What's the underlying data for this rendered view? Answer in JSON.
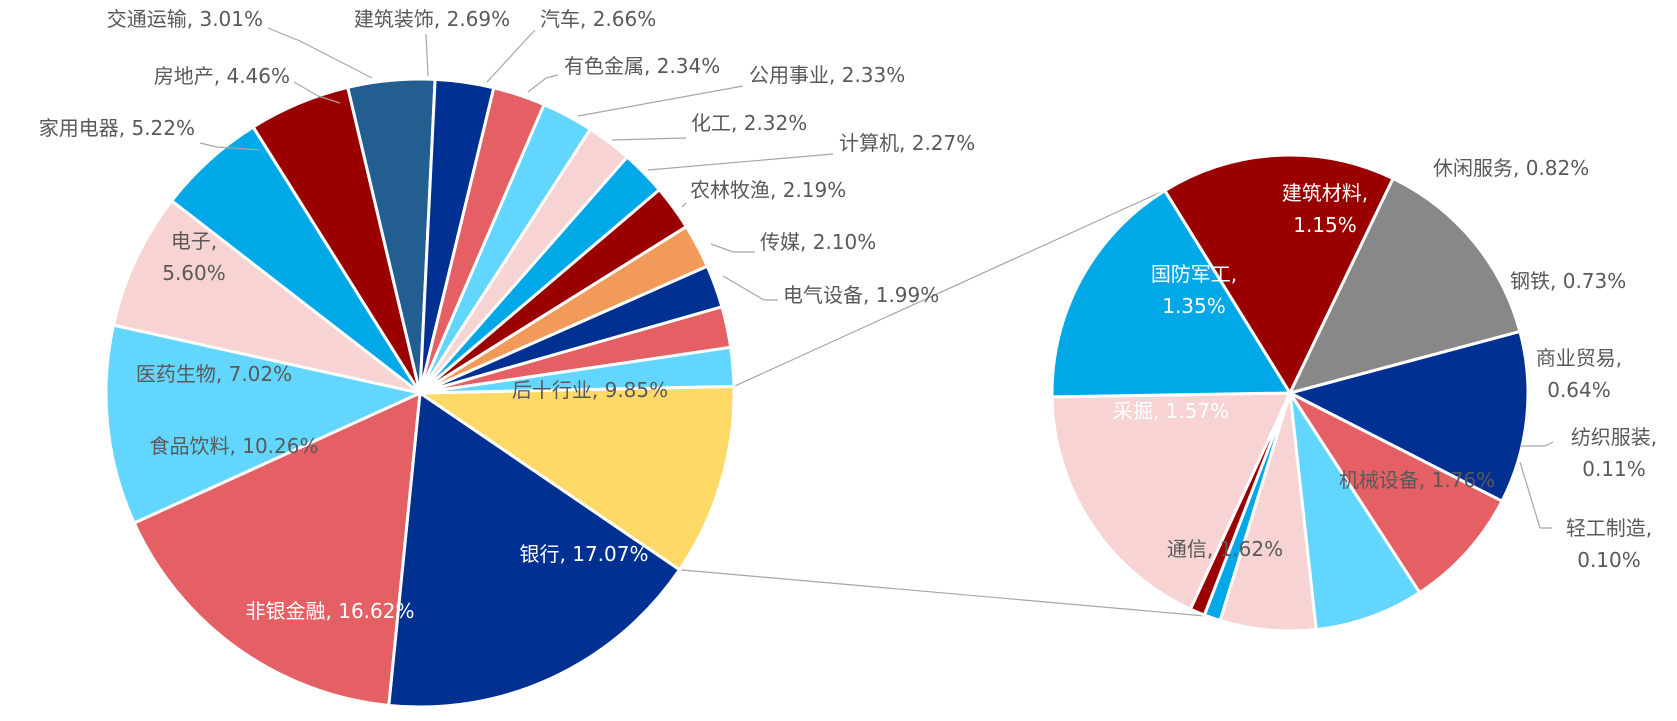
{
  "chart_data": {
    "type": "pie",
    "subtype": "pie-of-pie",
    "legend": "none",
    "main_pie": {
      "slices": [
        {
          "label": "后十行业",
          "value": 9.85,
          "text": "后十行业, 9.85%",
          "color": "#FFD966"
        },
        {
          "label": "银行",
          "value": 17.07,
          "text": "银行, 17.07%",
          "color": "#003192"
        },
        {
          "label": "非银金融",
          "value": 16.62,
          "text": "非银金融, 16.62%",
          "color": "#E46064"
        },
        {
          "label": "食品饮料",
          "value": 10.26,
          "text": "食品饮料, 10.26%",
          "color": "#63D6FF"
        },
        {
          "label": "医药生物",
          "value": 7.02,
          "text": "医药生物, 7.02%",
          "color": "#F8D3D3"
        },
        {
          "label": "电子",
          "value": 5.6,
          "text": "电子, 5.60%",
          "color": "#00A8E8"
        },
        {
          "label": "家用电器",
          "value": 5.22,
          "text": "家用电器, 5.22%",
          "color": "#9B0000"
        },
        {
          "label": "房地产",
          "value": 4.46,
          "text": "房地产, 4.46%",
          "color": "#225E8F"
        },
        {
          "label": "交通运输",
          "value": 3.01,
          "text": "交通运输, 3.01%",
          "color": "#003192"
        },
        {
          "label": "建筑装饰",
          "value": 2.69,
          "text": "建筑装饰, 2.69%",
          "color": "#E46064"
        },
        {
          "label": "汽车",
          "value": 2.66,
          "text": "汽车, 2.66%",
          "color": "#63D6FF"
        },
        {
          "label": "有色金属",
          "value": 2.34,
          "text": "有色金属, 2.34%",
          "color": "#F8D3D3"
        },
        {
          "label": "公用事业",
          "value": 2.33,
          "text": "公用事业, 2.33%",
          "color": "#00A8E8"
        },
        {
          "label": "化工",
          "value": 2.32,
          "text": "化工, 2.32%",
          "color": "#9B0000"
        },
        {
          "label": "计算机",
          "value": 2.27,
          "text": "计算机, 2.27%",
          "color": "#F29A5A"
        },
        {
          "label": "农林牧渔",
          "value": 2.19,
          "text": "农林牧渔, 2.19%",
          "color": "#003192"
        },
        {
          "label": "传媒",
          "value": 2.1,
          "text": "传媒, 2.10%",
          "color": "#E46064"
        },
        {
          "label": "电气设备",
          "value": 1.99,
          "text": "电气设备, 1.99%",
          "color": "#63D6FF"
        }
      ]
    },
    "secondary_pie": {
      "slices": [
        {
          "label": "建筑材料",
          "value": 1.15,
          "text": "建筑材料, 1.15%",
          "color": "#003192"
        },
        {
          "label": "休闲服务",
          "value": 0.82,
          "text": "休闲服务, 0.82%",
          "color": "#E46064"
        },
        {
          "label": "钢铁",
          "value": 0.73,
          "text": "钢铁, 0.73%",
          "color": "#63D6FF"
        },
        {
          "label": "商业贸易",
          "value": 0.64,
          "text": "商业贸易, 0.64%",
          "color": "#F8D3D3"
        },
        {
          "label": "纺织服装",
          "value": 0.11,
          "text": "纺织服装, 0.11%",
          "color": "#00A8E8"
        },
        {
          "label": "轻工制造",
          "value": 0.1,
          "text": "轻工制造, 0.10%",
          "color": "#9B0000"
        },
        {
          "label": "机械设备",
          "value": 1.76,
          "text": "机械设备, 1.76%",
          "color": "#F8D3D3"
        },
        {
          "label": "通信",
          "value": 1.62,
          "text": "通信, 1.62%",
          "color": "#00A8E8"
        },
        {
          "label": "采掘",
          "value": 1.57,
          "text": "采掘, 1.57%",
          "color": "#9B0000"
        },
        {
          "label": "国防军工",
          "value": 1.35,
          "text": "国防军工, 1.35%",
          "color": "#888888"
        }
      ]
    }
  }
}
